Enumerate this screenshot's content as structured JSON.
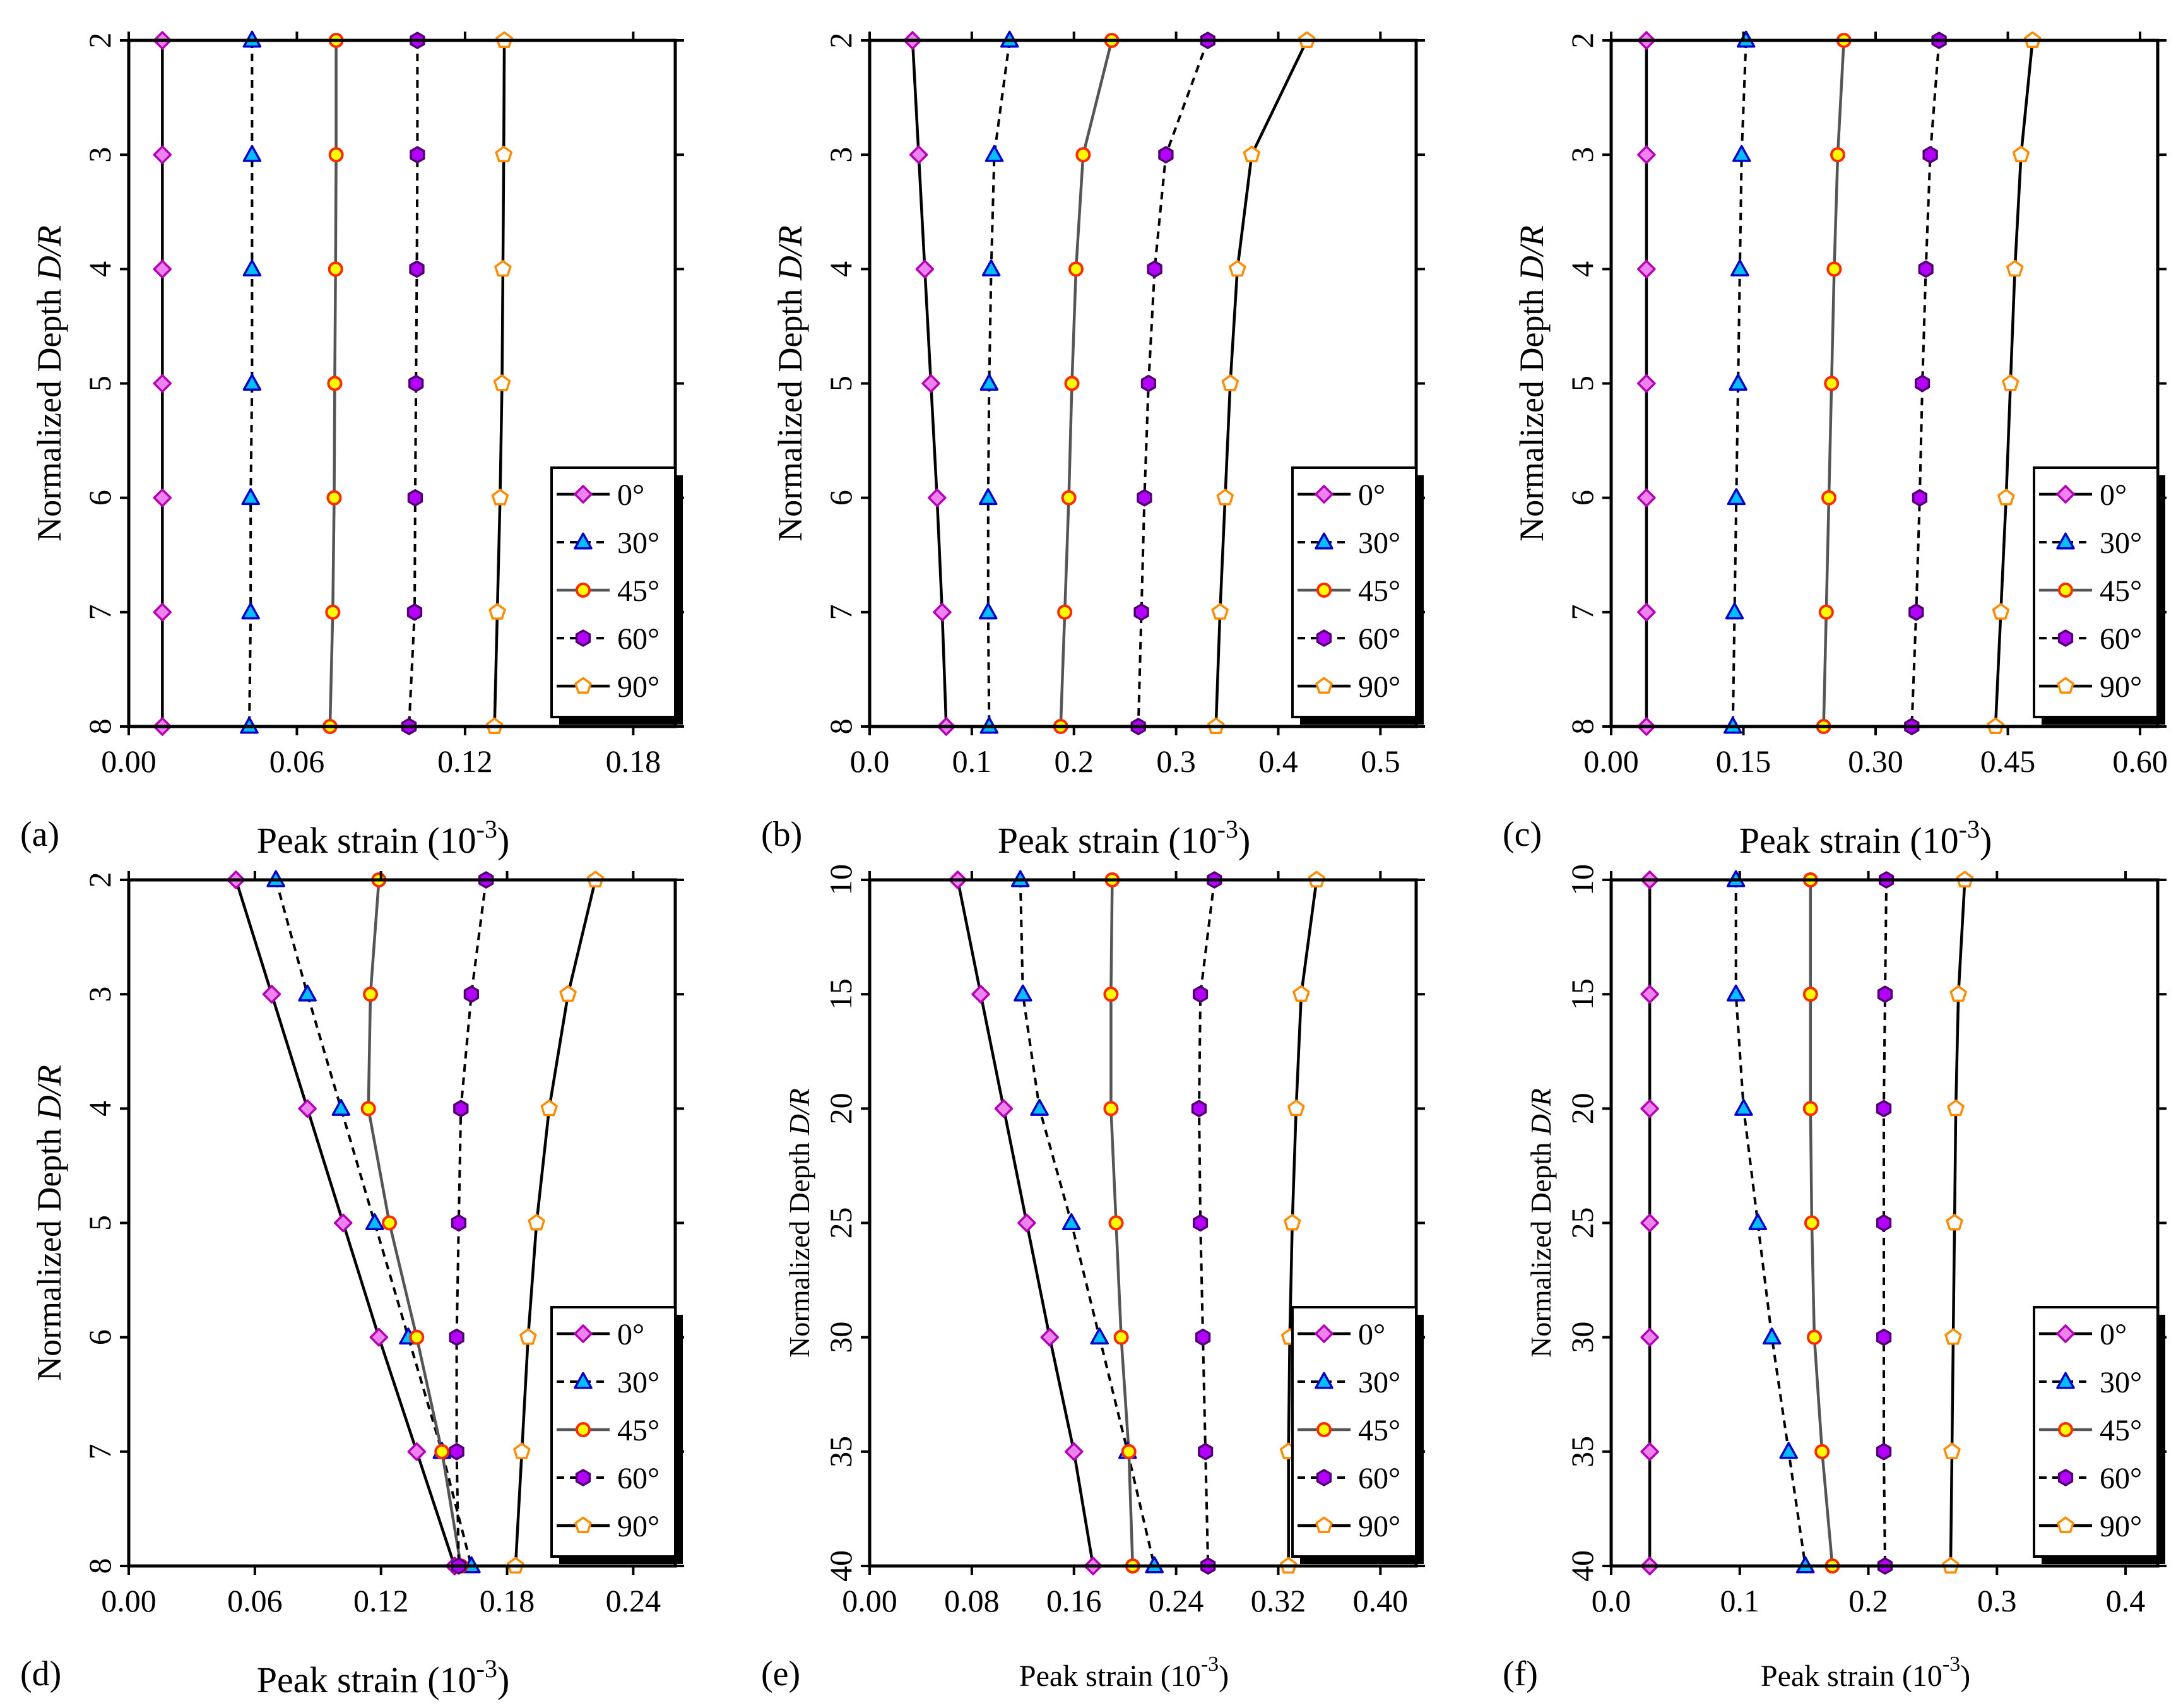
{
  "figure": {
    "series_names": [
      "0°",
      "30°",
      "45°",
      "60°",
      "90°"
    ]
  },
  "styles": {
    "series_colors": {
      "0°": {
        "fill": "#ee82ee",
        "stroke": "#b400b4",
        "marker": "diamond",
        "line": "solid"
      },
      "30°": {
        "fill": "#00bfff",
        "stroke": "#0000c8",
        "marker": "triangle",
        "line": "dashed"
      },
      "45°": {
        "fill": "#ffff00",
        "stroke": "#ff2a00",
        "marker": "circle",
        "line": "solid-gray"
      },
      "60°": {
        "fill": "#b400ff",
        "stroke": "#50006e",
        "marker": "hexagon",
        "line": "dashed"
      },
      "90°": {
        "fill": "#ffffff",
        "stroke": "#ff8c00",
        "marker": "pentagon",
        "line": "solid"
      }
    },
    "line_color_black": "#000000",
    "line_color_gray": "#555555"
  },
  "chart_data": [
    {
      "panel": "(a)",
      "type": "line",
      "xlabel": "Peak strain (10",
      "xlabel_exp": "-3",
      "xlabel_close": ")",
      "ylabel": "Normalized Depth ",
      "ylabel_italic": "D/R",
      "xlim": [
        0,
        0.195
      ],
      "ylim": [
        2,
        8
      ],
      "xticks": [
        "0.00",
        "0.06",
        "0.12",
        "0.18"
      ],
      "xtick_values": [
        0,
        0.06,
        0.12,
        0.18
      ],
      "yticks": [
        "2",
        "3",
        "4",
        "5",
        "6",
        "7",
        "8"
      ],
      "ytick_values": [
        2,
        3,
        4,
        5,
        6,
        7,
        8
      ],
      "y": [
        2,
        3,
        4,
        5,
        6,
        7,
        8
      ],
      "series": [
        {
          "name": "0°",
          "values": [
            0.012,
            0.012,
            0.012,
            0.012,
            0.012,
            0.012,
            0.012
          ]
        },
        {
          "name": "30°",
          "values": [
            0.044,
            0.044,
            0.044,
            0.044,
            0.0435,
            0.0435,
            0.043
          ]
        },
        {
          "name": "45°",
          "values": [
            0.074,
            0.074,
            0.0738,
            0.0735,
            0.0733,
            0.0728,
            0.0718
          ]
        },
        {
          "name": "60°",
          "values": [
            0.103,
            0.103,
            0.1028,
            0.1025,
            0.1022,
            0.102,
            0.1
          ]
        },
        {
          "name": "90°",
          "values": [
            0.134,
            0.1338,
            0.1335,
            0.1332,
            0.1325,
            0.1315,
            0.1305
          ]
        }
      ],
      "legend": "bottom-right"
    },
    {
      "panel": "(b)",
      "type": "line",
      "xlabel": "Peak strain (10",
      "xlabel_exp": "-3",
      "xlabel_close": ")",
      "ylabel": "Normalized Depth ",
      "ylabel_italic": "D/R",
      "xlim": [
        0,
        0.535
      ],
      "ylim": [
        2,
        8
      ],
      "xticks": [
        "0.0",
        "0.1",
        "0.2",
        "0.3",
        "0.4",
        "0.5"
      ],
      "xtick_values": [
        0,
        0.1,
        0.2,
        0.3,
        0.4,
        0.5
      ],
      "yticks": [
        "2",
        "3",
        "4",
        "5",
        "6",
        "7",
        "8"
      ],
      "ytick_values": [
        2,
        3,
        4,
        5,
        6,
        7,
        8
      ],
      "y": [
        2,
        3,
        4,
        5,
        6,
        7,
        8
      ],
      "series": [
        {
          "name": "0°",
          "values": [
            0.042,
            0.048,
            0.054,
            0.06,
            0.066,
            0.071,
            0.075
          ]
        },
        {
          "name": "30°",
          "values": [
            0.137,
            0.122,
            0.119,
            0.117,
            0.116,
            0.116,
            0.117
          ]
        },
        {
          "name": "45°",
          "values": [
            0.237,
            0.209,
            0.202,
            0.198,
            0.195,
            0.191,
            0.187
          ]
        },
        {
          "name": "60°",
          "values": [
            0.331,
            0.29,
            0.279,
            0.273,
            0.269,
            0.266,
            0.263
          ]
        },
        {
          "name": "90°",
          "values": [
            0.428,
            0.374,
            0.36,
            0.353,
            0.348,
            0.343,
            0.339
          ]
        }
      ],
      "legend": "bottom-right"
    },
    {
      "panel": "(c)",
      "type": "line",
      "xlabel": "Peak strain (10",
      "xlabel_exp": "-3",
      "xlabel_close": ")",
      "ylabel": "Normalized Depth ",
      "ylabel_italic": "D/R",
      "xlim": [
        0,
        0.62
      ],
      "ylim": [
        2,
        8
      ],
      "xticks": [
        "0.00",
        "0.15",
        "0.30",
        "0.45",
        "0.60"
      ],
      "xtick_values": [
        0,
        0.15,
        0.3,
        0.45,
        0.6
      ],
      "yticks": [
        "2",
        "3",
        "4",
        "5",
        "6",
        "7",
        "8"
      ],
      "ytick_values": [
        2,
        3,
        4,
        5,
        6,
        7,
        8
      ],
      "y": [
        2,
        3,
        4,
        5,
        6,
        7,
        8
      ],
      "series": [
        {
          "name": "0°",
          "values": [
            0.04,
            0.04,
            0.04,
            0.04,
            0.04,
            0.04,
            0.04
          ]
        },
        {
          "name": "30°",
          "values": [
            0.153,
            0.148,
            0.146,
            0.144,
            0.142,
            0.14,
            0.138
          ]
        },
        {
          "name": "45°",
          "values": [
            0.264,
            0.257,
            0.253,
            0.25,
            0.247,
            0.244,
            0.241
          ]
        },
        {
          "name": "60°",
          "values": [
            0.372,
            0.362,
            0.357,
            0.353,
            0.35,
            0.346,
            0.341
          ]
        },
        {
          "name": "90°",
          "values": [
            0.478,
            0.465,
            0.458,
            0.453,
            0.448,
            0.442,
            0.436
          ]
        }
      ],
      "legend": "bottom-right"
    },
    {
      "panel": "(d)",
      "type": "line",
      "xlabel": "Peak strain (10",
      "xlabel_exp": "-3",
      "xlabel_close": ")",
      "ylabel": "Normalized Depth ",
      "ylabel_italic": "D/R",
      "xlim": [
        0,
        0.26
      ],
      "ylim": [
        2,
        8
      ],
      "xticks": [
        "0.00",
        "0.06",
        "0.12",
        "0.18",
        "0.24"
      ],
      "xtick_values": [
        0,
        0.06,
        0.12,
        0.18,
        0.24
      ],
      "yticks": [
        "2",
        "3",
        "4",
        "5",
        "6",
        "7",
        "8"
      ],
      "ytick_values": [
        2,
        3,
        4,
        5,
        6,
        7,
        8
      ],
      "y": [
        2,
        3,
        4,
        5,
        6,
        7,
        8
      ],
      "series": [
        {
          "name": "0°",
          "values": [
            0.051,
            0.068,
            0.085,
            0.102,
            0.119,
            0.137,
            0.155
          ]
        },
        {
          "name": "30°",
          "values": [
            0.07,
            0.085,
            0.101,
            0.117,
            0.133,
            0.149,
            0.163
          ]
        },
        {
          "name": "45°",
          "values": [
            0.119,
            0.115,
            0.114,
            0.124,
            0.137,
            0.149,
            0.158
          ]
        },
        {
          "name": "60°",
          "values": [
            0.17,
            0.163,
            0.158,
            0.157,
            0.156,
            0.156,
            0.157
          ]
        },
        {
          "name": "90°",
          "values": [
            0.222,
            0.209,
            0.2,
            0.194,
            0.19,
            0.187,
            0.184
          ]
        }
      ],
      "legend": "bottom-right"
    },
    {
      "panel": "(e)",
      "type": "line",
      "xlabel": "Peak strain (10",
      "xlabel_exp": "-3",
      "xlabel_close": ")",
      "ylabel": "Normalized Depth ",
      "ylabel_italic": "D/R",
      "xlim": [
        0,
        0.428
      ],
      "ylim": [
        10,
        40
      ],
      "xticks": [
        "0.00",
        "0.08",
        "0.16",
        "0.24",
        "0.32",
        "0.40"
      ],
      "xtick_values": [
        0,
        0.08,
        0.16,
        0.24,
        0.32,
        0.4
      ],
      "yticks": [
        "10",
        "15",
        "20",
        "25",
        "30",
        "35",
        "40"
      ],
      "ytick_values": [
        10,
        15,
        20,
        25,
        30,
        35,
        40
      ],
      "y": [
        10,
        15,
        20,
        25,
        30,
        35,
        40
      ],
      "series": [
        {
          "name": "0°",
          "values": [
            0.069,
            0.087,
            0.105,
            0.123,
            0.141,
            0.16,
            0.175
          ]
        },
        {
          "name": "30°",
          "values": [
            0.118,
            0.12,
            0.133,
            0.158,
            0.18,
            0.202,
            0.223
          ]
        },
        {
          "name": "45°",
          "values": [
            0.19,
            0.189,
            0.189,
            0.193,
            0.197,
            0.203,
            0.206
          ]
        },
        {
          "name": "60°",
          "values": [
            0.27,
            0.259,
            0.258,
            0.259,
            0.261,
            0.263,
            0.265
          ]
        },
        {
          "name": "90°",
          "values": [
            0.35,
            0.338,
            0.334,
            0.331,
            0.329,
            0.328,
            0.328
          ]
        }
      ],
      "legend": "bottom-right"
    },
    {
      "panel": "(f)",
      "type": "line",
      "xlabel": "Peak strain (10",
      "xlabel_exp": "-3",
      "xlabel_close": ")",
      "ylabel": "Normalized Depth ",
      "ylabel_italic": "D/R",
      "xlim": [
        0,
        0.425
      ],
      "ylim": [
        10,
        40
      ],
      "xticks": [
        "0.0",
        "0.1",
        "0.2",
        "0.3",
        "0.4"
      ],
      "xtick_values": [
        0,
        0.1,
        0.2,
        0.3,
        0.4
      ],
      "yticks": [
        "10",
        "15",
        "20",
        "25",
        "30",
        "35",
        "40"
      ],
      "ytick_values": [
        10,
        15,
        20,
        25,
        30,
        35,
        40
      ],
      "y": [
        10,
        15,
        20,
        25,
        30,
        35,
        40
      ],
      "series": [
        {
          "name": "0°",
          "values": [
            0.03,
            0.03,
            0.03,
            0.03,
            0.03,
            0.03,
            0.03
          ]
        },
        {
          "name": "30°",
          "values": [
            0.097,
            0.097,
            0.103,
            0.114,
            0.125,
            0.138,
            0.151
          ]
        },
        {
          "name": "45°",
          "values": [
            0.155,
            0.155,
            0.155,
            0.156,
            0.158,
            0.164,
            0.172
          ]
        },
        {
          "name": "60°",
          "values": [
            0.214,
            0.213,
            0.212,
            0.212,
            0.212,
            0.212,
            0.213
          ]
        },
        {
          "name": "90°",
          "values": [
            0.275,
            0.27,
            0.268,
            0.267,
            0.266,
            0.265,
            0.264
          ]
        }
      ],
      "legend": "bottom-right"
    }
  ]
}
